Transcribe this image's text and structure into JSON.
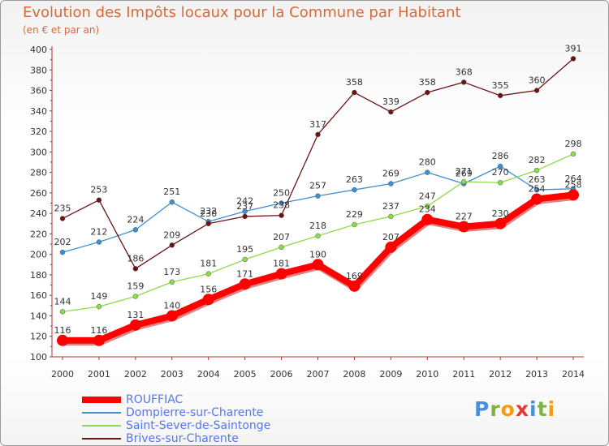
{
  "title": "Evolution des Impôts locaux pour la Commune par Habitant",
  "subtitle": "(en € et par an)",
  "logo": {
    "text": "Proxiti",
    "letters": [
      {
        "ch": "P",
        "color": "#4a90d9"
      },
      {
        "ch": "r",
        "color": "#7cb342"
      },
      {
        "ch": "o",
        "color": "#f39c12"
      },
      {
        "ch": "x",
        "color": "#e53935"
      },
      {
        "ch": "i",
        "color": "#4a90d9"
      },
      {
        "ch": "t",
        "color": "#7cb342"
      },
      {
        "ch": "i",
        "color": "#f39c12"
      }
    ]
  },
  "chart_data": {
    "type": "line",
    "x": [
      2000,
      2001,
      2002,
      2003,
      2004,
      2005,
      2006,
      2007,
      2008,
      2009,
      2010,
      2011,
      2012,
      2013,
      2014
    ],
    "ylim": [
      100,
      400
    ],
    "yticks": [
      100,
      120,
      140,
      160,
      180,
      200,
      220,
      240,
      260,
      280,
      300,
      320,
      340,
      360,
      380,
      400
    ],
    "grid": false,
    "legend_position": "bottom-left",
    "series": [
      {
        "name": "ROUFFIAC",
        "color": "#ff0000",
        "values": [
          116,
          116,
          131,
          140,
          156,
          171,
          181,
          190,
          169,
          207,
          234,
          227,
          230,
          254,
          258
        ],
        "labels": [
          "116",
          "116",
          "131",
          "140",
          "156",
          "171",
          "181",
          "190",
          "169",
          "207",
          "234",
          "227",
          "230",
          "254",
          "258"
        ]
      },
      {
        "name": "Dompierre-sur-Charente",
        "color": "#3f8fd2",
        "values": [
          202,
          212,
          224,
          251,
          232,
          242,
          250,
          257,
          263,
          269,
          280,
          269,
          286,
          263,
          264
        ],
        "labels": [
          "202",
          "212",
          "224",
          "251",
          "232",
          "242",
          "250",
          "257",
          "263",
          "269",
          "280",
          "269",
          "286",
          "263",
          "264"
        ]
      },
      {
        "name": "Saint-Sever-de-Saintonge",
        "color": "#8edb4a",
        "values": [
          144,
          149,
          159,
          173,
          181,
          195,
          207,
          218,
          229,
          237,
          247,
          271,
          270,
          282,
          298
        ],
        "labels": [
          "144",
          "149",
          "159",
          "173",
          "181",
          "195",
          "207",
          "218",
          "229",
          "237",
          "247",
          "271",
          "270",
          "282",
          "298"
        ]
      },
      {
        "name": "Brives-sur-Charente",
        "color": "#6b1414",
        "values": [
          235,
          253,
          186,
          209,
          230,
          237,
          238,
          317,
          358,
          339,
          358,
          368,
          355,
          360,
          391
        ],
        "labels": [
          "235",
          "253",
          "186",
          "209",
          "230",
          "237",
          "238",
          "317",
          "358",
          "339",
          "358",
          "368",
          "355",
          "360",
          "391"
        ]
      }
    ]
  }
}
